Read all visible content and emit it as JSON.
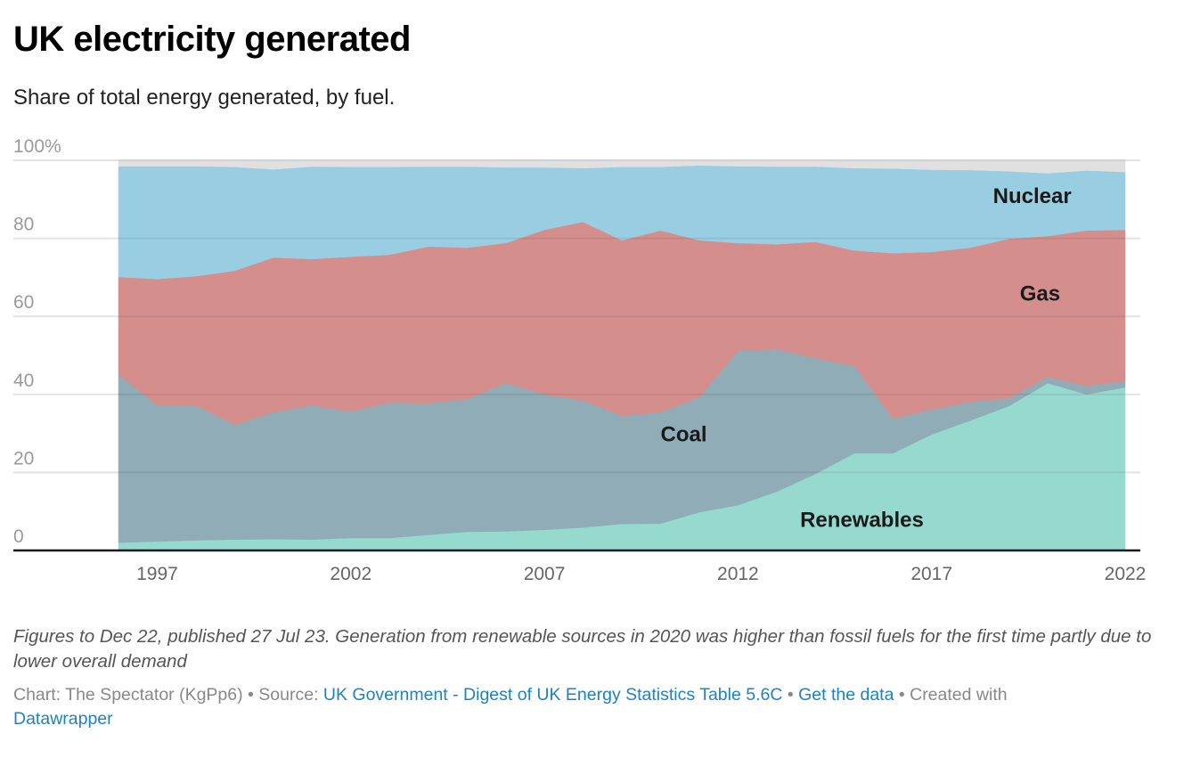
{
  "header": {
    "title": "UK electricity generated",
    "subtitle": "Share of total energy generated, by fuel."
  },
  "chart_data": {
    "type": "area",
    "stacked": true,
    "title": "UK electricity generated",
    "subtitle": "Share of total energy generated, by fuel.",
    "xlabel": "",
    "ylabel": "",
    "ylim": [
      0,
      100
    ],
    "xlim": [
      1996,
      2022
    ],
    "grid": true,
    "y_ticks": [
      {
        "value": 0,
        "label": "0"
      },
      {
        "value": 20,
        "label": "20"
      },
      {
        "value": 40,
        "label": "40"
      },
      {
        "value": 60,
        "label": "60"
      },
      {
        "value": 80,
        "label": "80"
      },
      {
        "value": 100,
        "label": "100%"
      }
    ],
    "x_ticks": [
      {
        "value": 1997,
        "label": "1997"
      },
      {
        "value": 2002,
        "label": "2002"
      },
      {
        "value": 2007,
        "label": "2007"
      },
      {
        "value": 2012,
        "label": "2012"
      },
      {
        "value": 2017,
        "label": "2017"
      },
      {
        "value": 2022,
        "label": "2022"
      }
    ],
    "x": [
      1996,
      1997,
      1998,
      1999,
      2000,
      2001,
      2002,
      2003,
      2004,
      2005,
      2006,
      2007,
      2008,
      2009,
      2010,
      2011,
      2012,
      2013,
      2014,
      2015,
      2016,
      2017,
      2018,
      2019,
      2020,
      2021,
      2022
    ],
    "series": [
      {
        "name": "Renewables",
        "color": "#96d9cf",
        "label_position": {
          "x": 2015.2,
          "y": 6
        },
        "values": [
          2.0,
          2.3,
          2.6,
          2.8,
          2.9,
          2.8,
          3.2,
          3.2,
          4.0,
          4.8,
          4.9,
          5.3,
          5.9,
          6.8,
          6.9,
          9.8,
          11.6,
          15.1,
          19.6,
          24.9,
          24.9,
          29.7,
          33.3,
          37.0,
          42.9,
          40.0,
          41.8
        ]
      },
      {
        "name": "Coal",
        "color": "#8facb7",
        "label_position": {
          "x": 2010.6,
          "y": 28
        },
        "values": [
          43.0,
          34.9,
          34.6,
          29.4,
          32.5,
          34.4,
          32.4,
          34.7,
          33.7,
          34.0,
          38.0,
          34.7,
          32.5,
          27.7,
          28.5,
          29.5,
          39.5,
          36.5,
          29.6,
          22.4,
          8.9,
          6.4,
          4.8,
          2.0,
          1.6,
          2.2,
          1.6
        ]
      },
      {
        "name": "Gas",
        "color": "#d48f8d",
        "label_position": {
          "x": 2019.8,
          "y": 64
        },
        "values": [
          25.1,
          32.4,
          33.1,
          39.5,
          39.7,
          37.5,
          39.7,
          37.9,
          40.2,
          38.8,
          35.9,
          42.2,
          45.8,
          45.0,
          46.6,
          40.2,
          27.7,
          26.9,
          29.9,
          29.6,
          42.4,
          40.4,
          39.5,
          40.9,
          36.1,
          39.8,
          38.8
        ]
      },
      {
        "name": "Nuclear",
        "color": "#99cde2",
        "label_position": {
          "x": 2019.6,
          "y": 89
        },
        "values": [
          28.4,
          28.9,
          28.2,
          26.6,
          22.6,
          23.7,
          23.0,
          22.5,
          20.5,
          20.8,
          19.4,
          16.0,
          13.8,
          18.8,
          16.3,
          19.2,
          19.7,
          19.9,
          19.3,
          21.1,
          21.7,
          21.1,
          19.9,
          17.3,
          16.1,
          15.4,
          14.8
        ]
      },
      {
        "name": "Other",
        "color": "#e0e0e0",
        "label_position": null,
        "values": [
          1.5,
          1.5,
          1.5,
          1.7,
          2.3,
          1.6,
          1.7,
          1.7,
          1.6,
          1.6,
          1.8,
          1.8,
          2.0,
          1.7,
          1.7,
          1.3,
          1.5,
          1.6,
          1.6,
          2.0,
          2.1,
          2.4,
          2.5,
          2.8,
          3.3,
          2.6,
          3.0
        ]
      }
    ]
  },
  "notes": "Figures to Dec 22, published 27 Jul 23. Generation from renewable sources in 2020 was higher than fossil fuels for the first time partly due to lower overall demand",
  "byline": {
    "chart_prefix": "Chart: The Spectator (KgPp6)",
    "separator": " • ",
    "source_prefix": "Source: ",
    "source_link": "UK Government - Digest of UK Energy Statistics Table 5.6C",
    "get_data_link": "Get the data",
    "created_with": "Created with",
    "datawrapper_link": "Datawrapper"
  }
}
